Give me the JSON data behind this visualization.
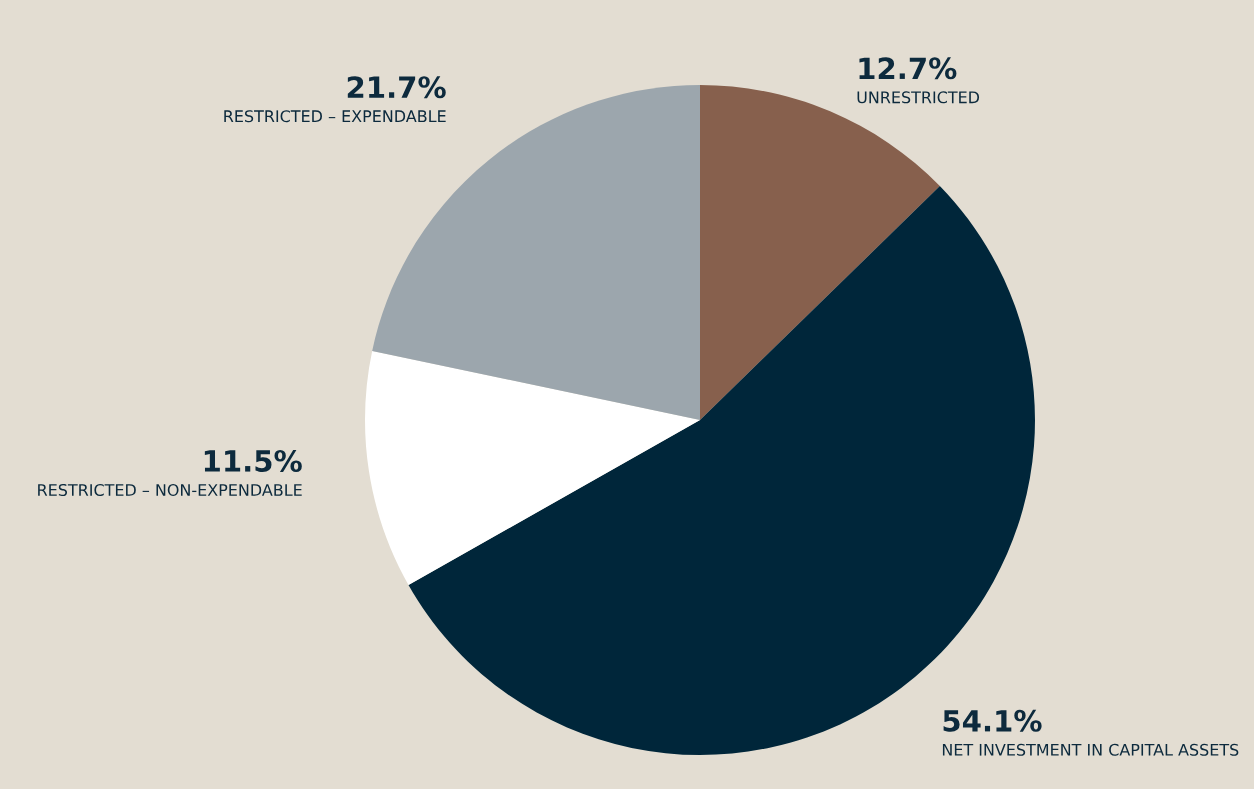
{
  "chart_data": {
    "type": "pie",
    "categories": [
      "UNRESTRICTED",
      "NET INVESTMENT IN CAPITAL ASSETS",
      "RESTRICTED – NON-EXPENDABLE",
      "RESTRICTED – EXPENDABLE"
    ],
    "values": [
      12.7,
      54.1,
      11.5,
      21.7
    ],
    "value_labels": [
      "12.7%",
      "54.1%",
      "11.5%",
      "21.7%"
    ],
    "colors": [
      "#87604d",
      "#00263a",
      "#ffffff",
      "#9ca6ad"
    ],
    "legend": false
  }
}
